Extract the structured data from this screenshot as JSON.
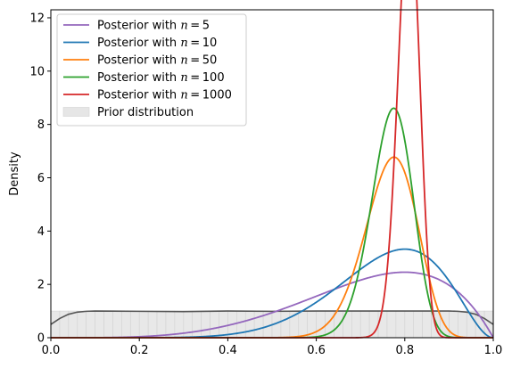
{
  "chart_data": {
    "type": "line",
    "title": "",
    "xlabel": "",
    "ylabel": "Density",
    "xlim": [
      0.0,
      1.0
    ],
    "ylim": [
      0,
      12.3
    ],
    "xticks": [
      "0.0",
      "0.2",
      "0.4",
      "0.6",
      "0.8",
      "1.0"
    ],
    "yticks": [
      "0",
      "2",
      "4",
      "6",
      "8",
      "10",
      "12"
    ],
    "grid": false,
    "legend_position": "top-left",
    "prior": {
      "name": "Prior distribution",
      "type": "histogram",
      "bins": 50,
      "value": 1.0,
      "fill_color": "#e6e6e6",
      "kde_color": "#555555",
      "kde": [
        [
          0.0,
          0.5
        ],
        [
          0.02,
          0.72
        ],
        [
          0.04,
          0.88
        ],
        [
          0.06,
          0.96
        ],
        [
          0.08,
          0.99
        ],
        [
          0.1,
          1.0
        ],
        [
          0.2,
          0.99
        ],
        [
          0.3,
          0.98
        ],
        [
          0.4,
          1.0
        ],
        [
          0.5,
          0.99
        ],
        [
          0.6,
          1.0
        ],
        [
          0.7,
          1.0
        ],
        [
          0.8,
          1.0
        ],
        [
          0.9,
          1.0
        ],
        [
          0.92,
          0.99
        ],
        [
          0.94,
          0.96
        ],
        [
          0.96,
          0.88
        ],
        [
          0.98,
          0.72
        ],
        [
          1.0,
          0.5
        ]
      ]
    },
    "series": [
      {
        "name": "Posterior with $n = 5$",
        "color": "#9467bd",
        "distribution": "beta",
        "a": 5,
        "b": 2
      },
      {
        "name": "Posterior with $n = 10$",
        "color": "#1f77b4",
        "distribution": "beta",
        "a": 9,
        "b": 3
      },
      {
        "name": "Posterior with $n = 50$",
        "color": "#ff7f0e",
        "distribution": "beta",
        "a": 39,
        "b": 12
      },
      {
        "name": "Posterior with $n = 100$",
        "color": "#2ca02c",
        "distribution": "beta",
        "a": 63,
        "b": 19
      },
      {
        "name": "Posterior with $n = 1000$",
        "color": "#d62728",
        "distribution": "beta",
        "a": 210,
        "b": 50
      }
    ],
    "legend": [
      {
        "label": "Posterior with ",
        "math": "n = 5"
      },
      {
        "label": "Posterior with ",
        "math": "n = 10"
      },
      {
        "label": "Posterior with ",
        "math": "n = 50"
      },
      {
        "label": "Posterior with ",
        "math": "n = 100"
      },
      {
        "label": "Posterior with ",
        "math": "n = 1000"
      },
      {
        "label": "Prior distribution",
        "math": ""
      }
    ]
  }
}
